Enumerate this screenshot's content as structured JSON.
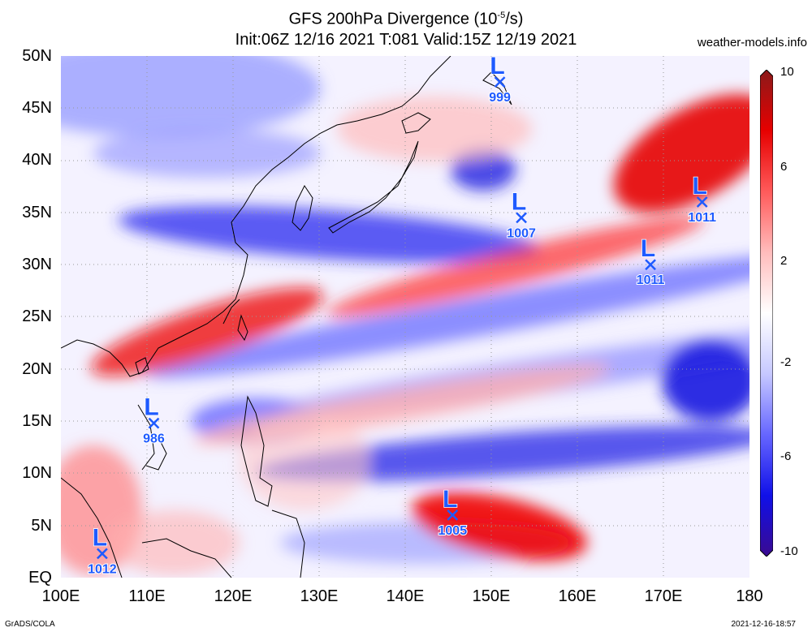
{
  "title": {
    "line1_prefix": "GFS 200hPa Divergence (10",
    "line1_exp": "-5",
    "line1_suffix": "/s)",
    "line2": "Init:06Z 12/16 2021 T:081 Valid:15Z 12/19 2021"
  },
  "site": "weather-models.info",
  "footer": {
    "left": "GrADS/COLA",
    "right": "2021-12-16-18:57"
  },
  "axes": {
    "lat_labels": [
      "50N",
      "45N",
      "40N",
      "35N",
      "30N",
      "25N",
      "20N",
      "15N",
      "10N",
      "5N",
      "EQ"
    ],
    "lon_labels": [
      "100E",
      "110E",
      "120E",
      "130E",
      "140E",
      "150E",
      "160E",
      "170E",
      "180"
    ]
  },
  "colorbar": {
    "labels": [
      "10",
      "6",
      "2",
      "-2",
      "-6",
      "-10"
    ],
    "colors": [
      "#8b1a1a",
      "#e60000",
      "#ff5a5a",
      "#ffbcbc",
      "#ffffff",
      "#c6c8ff",
      "#6666ff",
      "#1010e8",
      "#3a0a90"
    ]
  },
  "lows": [
    {
      "label": "L",
      "value": "999",
      "lon": 151.0,
      "lat": 47.5
    },
    {
      "label": "L",
      "value": "1007",
      "lon": 153.5,
      "lat": 34.5
    },
    {
      "label": "L",
      "value": "1011",
      "lon": 174.5,
      "lat": 36.0
    },
    {
      "label": "L",
      "value": "1011",
      "lon": 168.5,
      "lat": 30.0
    },
    {
      "label": "L",
      "value": "986",
      "lon": 110.8,
      "lat": 14.8
    },
    {
      "label": "L",
      "value": "1005",
      "lon": 145.5,
      "lat": 6.0
    },
    {
      "label": "L",
      "value": "1012",
      "lon": 104.8,
      "lat": 2.3
    }
  ]
}
